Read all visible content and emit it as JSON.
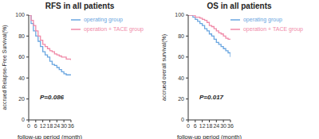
{
  "chart_data": [
    {
      "type": "line",
      "title": "RFS in all patients",
      "x_label": "follow-up period (month)",
      "y_label": "accrued Relapse-Free Survival(%)",
      "annotation": "P=0.086",
      "x": [
        0,
        2,
        4,
        6,
        8,
        10,
        12,
        14,
        16,
        18,
        20,
        22,
        24,
        26,
        28,
        30,
        32,
        34,
        36
      ],
      "series": [
        {
          "name": "operating group",
          "color": "#6aa6e0",
          "values": [
            100,
            92,
            85,
            80,
            75,
            70,
            65,
            62,
            60,
            56,
            53,
            52,
            50,
            48,
            46,
            44,
            43,
            43,
            43
          ]
        },
        {
          "name": "operation + TACE group",
          "color": "#f08aa8",
          "values": [
            100,
            95,
            90,
            85,
            80,
            76,
            72,
            70,
            68,
            66,
            65,
            63,
            62,
            61,
            60,
            60,
            58,
            58,
            57
          ]
        }
      ],
      "xlim": [
        0,
        36
      ],
      "xticks": [
        0,
        6,
        12,
        18,
        24,
        30,
        36
      ],
      "ylim": [
        0,
        100
      ],
      "yticks": [
        0,
        20,
        40,
        60,
        80,
        100
      ],
      "line_style": "step",
      "legend": "upper right",
      "grid": false
    },
    {
      "type": "line",
      "title": "OS in all patients",
      "x_label": "follow-up period (month)",
      "y_label": "accrued overall survival(%)",
      "annotation": "P=0.017",
      "x": [
        0,
        2,
        4,
        6,
        8,
        10,
        12,
        14,
        16,
        18,
        20,
        22,
        24,
        26,
        28,
        30,
        32,
        34,
        36
      ],
      "series": [
        {
          "name": "operating group",
          "color": "#6aa6e0",
          "values": [
            100,
            100,
            98,
            96,
            94,
            92,
            90,
            87,
            85,
            82,
            80,
            77,
            74,
            72,
            70,
            68,
            66,
            64,
            60
          ]
        },
        {
          "name": "operation + TACE group",
          "color": "#f08aa8",
          "values": [
            100,
            100,
            100,
            98,
            98,
            97,
            96,
            95,
            93,
            90,
            89,
            87,
            85,
            83,
            82,
            80,
            78,
            77,
            77
          ]
        }
      ],
      "xlim": [
        0,
        36
      ],
      "xticks": [
        0,
        6,
        12,
        18,
        24,
        30,
        36
      ],
      "ylim": [
        0,
        100
      ],
      "yticks": [
        0,
        20,
        40,
        60,
        80,
        100
      ],
      "line_style": "step",
      "legend": "upper right",
      "grid": false
    }
  ]
}
